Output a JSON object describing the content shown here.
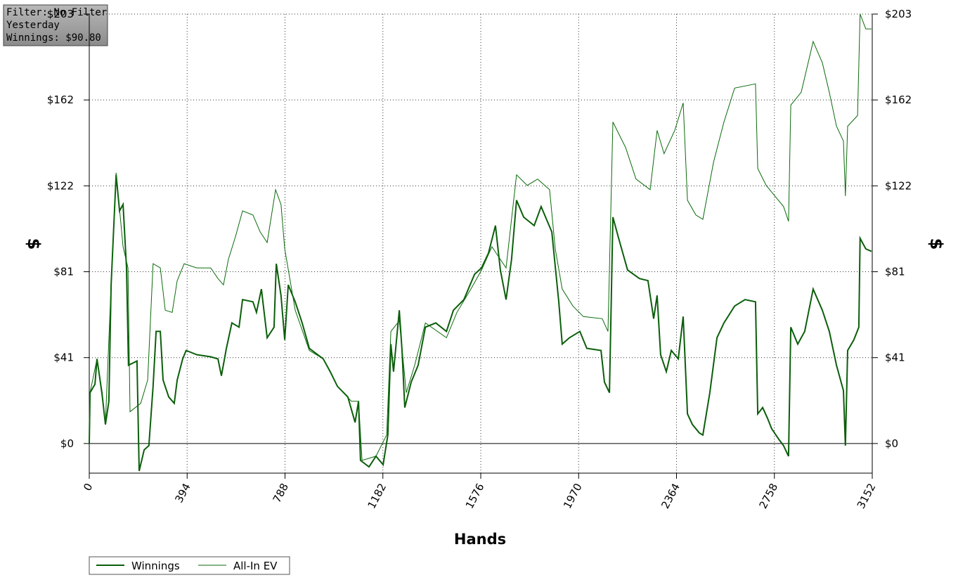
{
  "chart_data": {
    "type": "line",
    "annotations": [
      "Filter: No Filter",
      "Yesterday",
      "Winnings: $90.80"
    ],
    "x_label": "Hands",
    "y_label": "$",
    "y2_label": "$",
    "xlim": [
      0,
      3152
    ],
    "xticks": [
      0,
      394,
      788,
      1182,
      1576,
      1970,
      2364,
      2758,
      3152
    ],
    "ylim": [
      -14,
      203
    ],
    "yticks": [
      {
        "value": 0,
        "label": "$0"
      },
      {
        "value": 40.6,
        "label": "$41"
      },
      {
        "value": 81.2,
        "label": "$81"
      },
      {
        "value": 121.8,
        "label": "$122"
      },
      {
        "value": 162.4,
        "label": "$162"
      },
      {
        "value": 203,
        "label": "$203"
      }
    ],
    "grid": true,
    "legend": "bottom-left",
    "series": [
      {
        "name": "Winnings",
        "color": "#0b5e0b",
        "x": [
          0,
          3,
          23,
          31,
          51,
          65,
          79,
          88,
          108,
          122,
          136,
          150,
          158,
          192,
          201,
          221,
          240,
          257,
          269,
          286,
          297,
          320,
          342,
          354,
          376,
          390,
          433,
          489,
          518,
          532,
          552,
          574,
          603,
          617,
          659,
          673,
          693,
          716,
          744,
          753,
          772,
          787,
          801,
          829,
          857,
          886,
          942,
          970,
          999,
          1041,
          1070,
          1084,
          1092,
          1126,
          1154,
          1183,
          1202,
          1214,
          1225,
          1248,
          1259,
          1270,
          1296,
          1324,
          1353,
          1395,
          1438,
          1466,
          1508,
          1551,
          1579,
          1607,
          1635,
          1655,
          1678,
          1700,
          1720,
          1749,
          1791,
          1819,
          1862,
          1890,
          1904,
          1933,
          1975,
          2003,
          2060,
          2074,
          2094,
          2108,
          2131,
          2167,
          2215,
          2249,
          2272,
          2286,
          2300,
          2323,
          2343,
          2371,
          2391,
          2408,
          2428,
          2456,
          2470,
          2498,
          2527,
          2555,
          2598,
          2640,
          2682,
          2691,
          2711,
          2730,
          2747,
          2776,
          2795,
          2815,
          2824,
          2852,
          2880,
          2914,
          2951,
          2979,
          3008,
          3036,
          3044,
          3053,
          3078,
          3098,
          3103,
          3126,
          3149
        ],
        "values": [
          0,
          24,
          28,
          40,
          24,
          9,
          20,
          75,
          127,
          110,
          113,
          83,
          37,
          39,
          -13,
          -3,
          -1,
          27,
          53,
          53,
          30,
          22,
          19,
          30,
          40,
          44,
          42,
          41,
          40,
          32,
          45,
          57,
          55,
          68,
          67,
          62,
          73,
          50,
          55,
          85,
          70,
          49,
          75,
          67,
          57,
          45,
          40,
          34,
          27,
          22,
          10,
          20,
          -8,
          -11,
          -6,
          -10,
          4,
          47,
          34,
          63,
          44,
          17,
          29,
          37,
          55,
          57,
          53,
          63,
          68,
          80,
          83,
          90,
          103,
          82,
          68,
          87,
          115,
          107,
          103,
          112,
          100,
          67,
          47,
          50,
          53,
          45,
          44,
          29,
          24,
          107,
          97,
          82,
          78,
          77,
          59,
          70,
          42,
          34,
          44,
          40,
          60,
          14,
          9,
          5,
          4,
          24,
          50,
          57,
          65,
          68,
          67,
          14,
          17,
          12,
          7,
          2,
          -1,
          -6,
          55,
          47,
          53,
          73,
          63,
          53,
          37,
          25,
          -1,
          44,
          49,
          55,
          97,
          92,
          90.8
        ]
      },
      {
        "name": "All-In EV",
        "color": "#0b6a0b",
        "x": [
          0,
          3,
          31,
          65,
          88,
          108,
          136,
          156,
          164,
          207,
          235,
          257,
          286,
          306,
          334,
          354,
          382,
          433,
          489,
          518,
          540,
          560,
          589,
          617,
          659,
          688,
          716,
          750,
          772,
          787,
          829,
          886,
          942,
          999,
          1055,
          1084,
          1098,
          1154,
          1197,
          1214,
          1248,
          1259,
          1276,
          1310,
          1353,
          1438,
          1480,
          1536,
          1579,
          1621,
          1678,
          1720,
          1763,
          1805,
          1853,
          1876,
          1904,
          1947,
          1989,
          2065,
          2088,
          2108,
          2159,
          2201,
          2258,
          2286,
          2314,
          2357,
          2391,
          2408,
          2442,
          2470,
          2513,
          2555,
          2598,
          2682,
          2691,
          2725,
          2753,
          2795,
          2815,
          2824,
          2866,
          2914,
          2951,
          2979,
          3008,
          3036,
          3044,
          3053,
          3093,
          3103,
          3126,
          3149
        ],
        "values": [
          0,
          24,
          40,
          10,
          75,
          128,
          93,
          83,
          15,
          19,
          30,
          85,
          83,
          63,
          62,
          77,
          85,
          83,
          83,
          78,
          75,
          87,
          98,
          110,
          108,
          100,
          95,
          120,
          113,
          92,
          63,
          44,
          40,
          27,
          20,
          20,
          -8,
          -6,
          4,
          53,
          58,
          45,
          24,
          37,
          57,
          50,
          62,
          73,
          82,
          93,
          83,
          127,
          122,
          125,
          120,
          92,
          73,
          65,
          60,
          59,
          53,
          152,
          140,
          125,
          120,
          148,
          137,
          148,
          161,
          115,
          108,
          106,
          133,
          152,
          168,
          170,
          130,
          122,
          118,
          112,
          105,
          160,
          166,
          190,
          180,
          166,
          150,
          143,
          117,
          150,
          155,
          203,
          196,
          196
        ]
      }
    ]
  }
}
